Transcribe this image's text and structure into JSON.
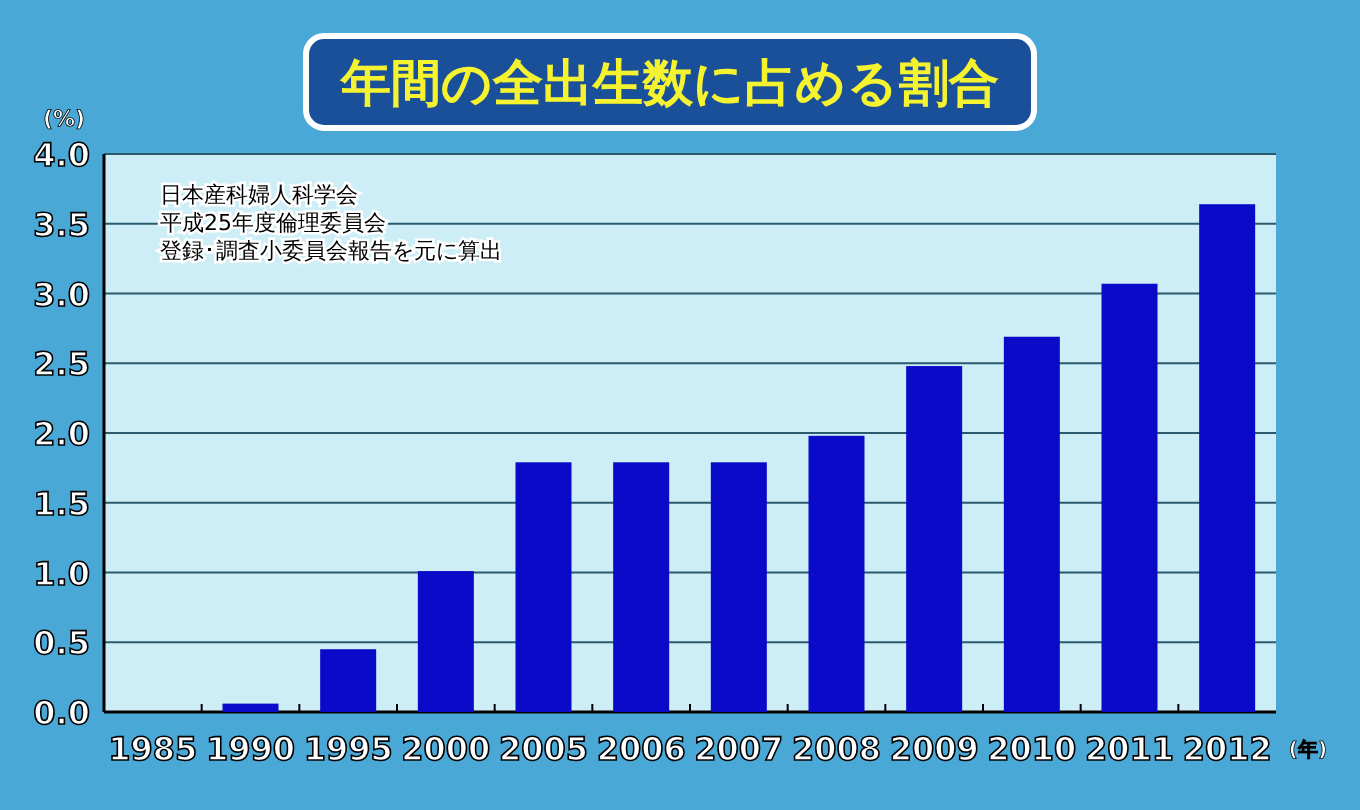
{
  "chart_data": {
    "type": "bar",
    "title": "年間の全出生数に占める割合",
    "ylabel": "(%)",
    "xlabel": "(年)",
    "annotations": [
      "日本産科婦人科学会",
      "平成25年度倫理委員会",
      "登録･調査小委員会報告を元に算出"
    ],
    "categories": [
      "1985",
      "1990",
      "1995",
      "2000",
      "2005",
      "2006",
      "2007",
      "2008",
      "2009",
      "2010",
      "2011",
      "2012"
    ],
    "values": [
      0,
      0.06,
      0.45,
      1.01,
      1.79,
      1.79,
      1.79,
      1.98,
      2.48,
      2.69,
      3.07,
      3.64
    ],
    "color": "#0a0ac8",
    "ylim": [
      0,
      4
    ],
    "yticks": [
      {
        "value": 0,
        "label": "0.0"
      },
      {
        "value": 0.5,
        "label": "0.5"
      },
      {
        "value": 1,
        "label": "1.0"
      },
      {
        "value": 1.5,
        "label": "1.5"
      },
      {
        "value": 2,
        "label": "2.0"
      },
      {
        "value": 2.5,
        "label": "2.5"
      },
      {
        "value": 3,
        "label": "3.0"
      },
      {
        "value": 3.5,
        "label": "3.5"
      },
      {
        "value": 4,
        "label": "4.0"
      }
    ],
    "grid": "y"
  }
}
